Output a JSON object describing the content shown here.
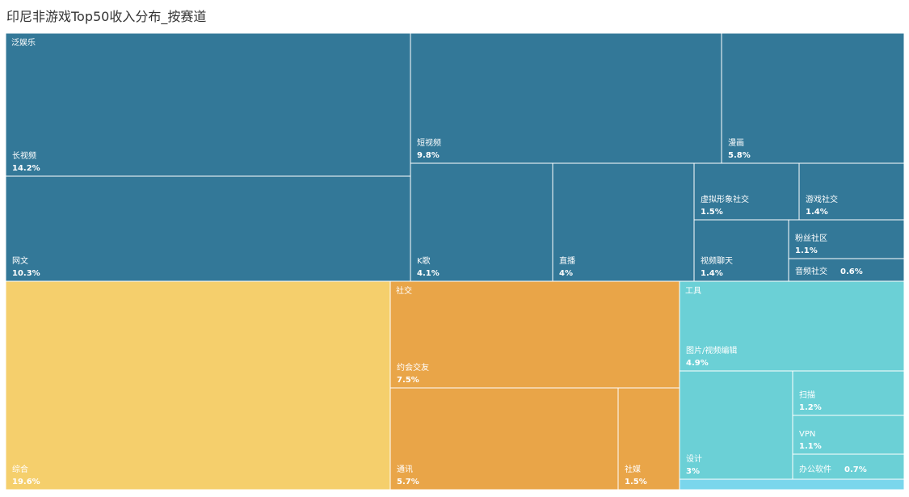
{
  "chart_data": {
    "type": "treemap",
    "title": "印尼非游戏Top50收入分布_按赛道",
    "groups": [
      {
        "name": "泛娱乐",
        "color": "#337898",
        "children": [
          {
            "name": "长视频",
            "value": 14.2,
            "value_label": "14.2%"
          },
          {
            "name": "网文",
            "value": 10.3,
            "value_label": "10.3%"
          },
          {
            "name": "短视频",
            "value": 9.8,
            "value_label": "9.8%"
          },
          {
            "name": "漫画",
            "value": 5.8,
            "value_label": "5.8%"
          },
          {
            "name": "K歌",
            "value": 4.1,
            "value_label": "4.1%"
          },
          {
            "name": "直播",
            "value": 4,
            "value_label": "4%"
          },
          {
            "name": "虚拟形象社交",
            "value": 1.5,
            "value_label": "1.5%"
          },
          {
            "name": "游戏社交",
            "value": 1.4,
            "value_label": "1.4%"
          },
          {
            "name": "视频聊天",
            "value": 1.4,
            "value_label": "1.4%"
          },
          {
            "name": "粉丝社区",
            "value": 1.1,
            "value_label": "1.1%"
          },
          {
            "name": "音频社交",
            "value": 0.6,
            "value_label": "0.6%"
          }
        ]
      },
      {
        "name": "",
        "color": "#F5CF6C",
        "children": [
          {
            "name": "综合",
            "value": 19.6,
            "value_label": "19.6%"
          }
        ]
      },
      {
        "name": "社交",
        "color": "#E9A548",
        "children": [
          {
            "name": "约会交友",
            "value": 7.5,
            "value_label": "7.5%"
          },
          {
            "name": "通讯",
            "value": 5.7,
            "value_label": "5.7%"
          },
          {
            "name": "社媒",
            "value": 1.5,
            "value_label": "1.5%"
          }
        ]
      },
      {
        "name": "工具",
        "color": "#6BD0D6",
        "children": [
          {
            "name": "图片/视频编辑",
            "value": 4.9,
            "value_label": "4.9%"
          },
          {
            "name": "设计",
            "value": 3,
            "value_label": "3%"
          },
          {
            "name": "扫描",
            "value": 1.2,
            "value_label": "1.2%"
          },
          {
            "name": "VPN",
            "value": 1.1,
            "value_label": "1.1%"
          },
          {
            "name": "办公软件",
            "value": 0.7,
            "value_label": "0.7%"
          }
        ]
      }
    ]
  }
}
